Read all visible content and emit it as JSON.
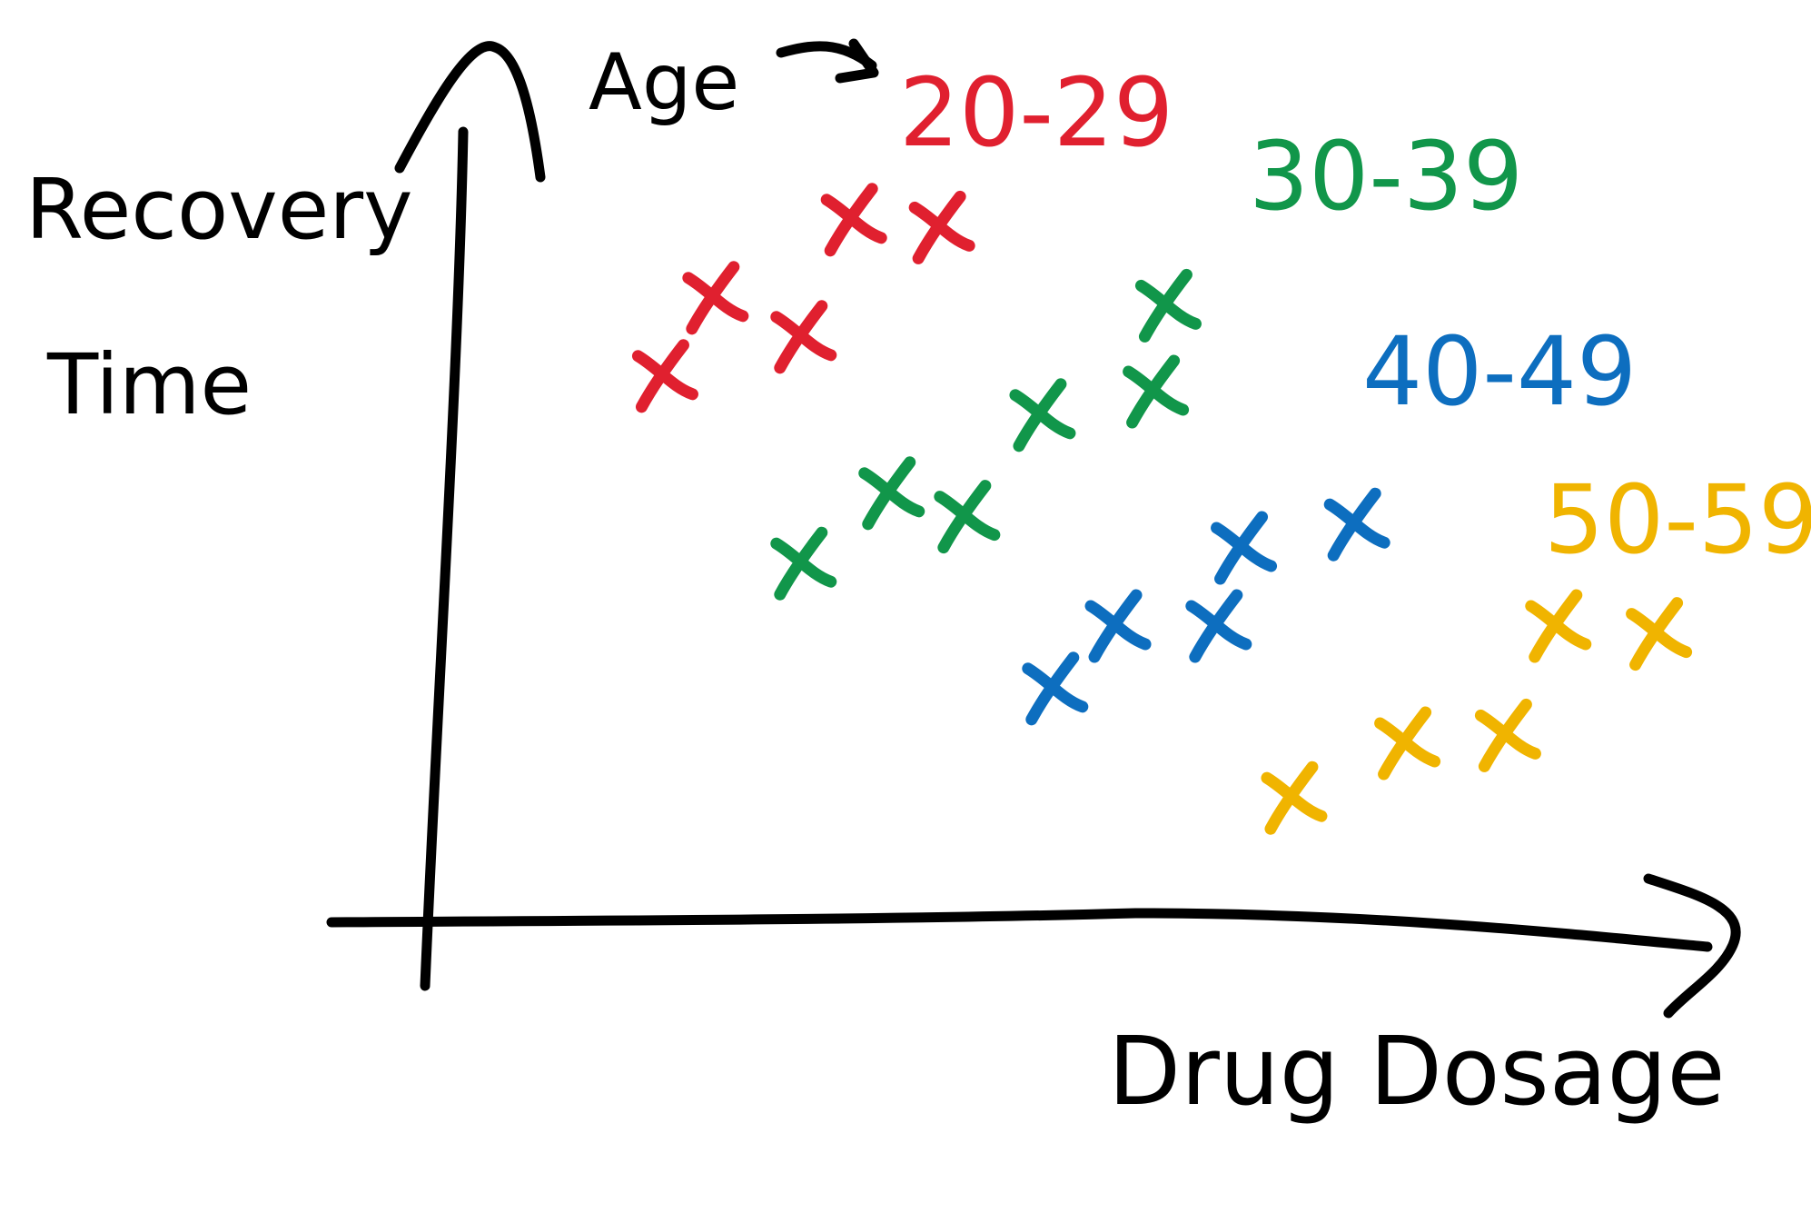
{
  "chart_data": {
    "type": "scatter",
    "title": "",
    "xlabel": "Drug Dosage",
    "ylabel_lines": [
      "Recovery",
      "Time"
    ],
    "legend_title": "Age",
    "grid": false,
    "xlim": [
      0,
      100
    ],
    "ylim": [
      0,
      100
    ],
    "series": [
      {
        "name": "20-29",
        "color": "#e0202f",
        "points": [
          {
            "x": 17,
            "y": 67
          },
          {
            "x": 21,
            "y": 77
          },
          {
            "x": 28,
            "y": 72
          },
          {
            "x": 32,
            "y": 87
          },
          {
            "x": 39,
            "y": 86
          }
        ]
      },
      {
        "name": "30-39",
        "color": "#11964a",
        "points": [
          {
            "x": 28,
            "y": 43
          },
          {
            "x": 35,
            "y": 52
          },
          {
            "x": 41,
            "y": 49
          },
          {
            "x": 47,
            "y": 62
          },
          {
            "x": 56,
            "y": 65
          },
          {
            "x": 57,
            "y": 76
          }
        ]
      },
      {
        "name": "40-49",
        "color": "#0d6ebf",
        "points": [
          {
            "x": 48,
            "y": 27
          },
          {
            "x": 53,
            "y": 35
          },
          {
            "x": 61,
            "y": 35
          },
          {
            "x": 63,
            "y": 45
          },
          {
            "x": 72,
            "y": 48
          }
        ]
      },
      {
        "name": "50-59",
        "color": "#f0b400",
        "points": [
          {
            "x": 67,
            "y": 13
          },
          {
            "x": 76,
            "y": 20
          },
          {
            "x": 84,
            "y": 21
          },
          {
            "x": 88,
            "y": 35
          },
          {
            "x": 96,
            "y": 34
          }
        ]
      }
    ]
  }
}
